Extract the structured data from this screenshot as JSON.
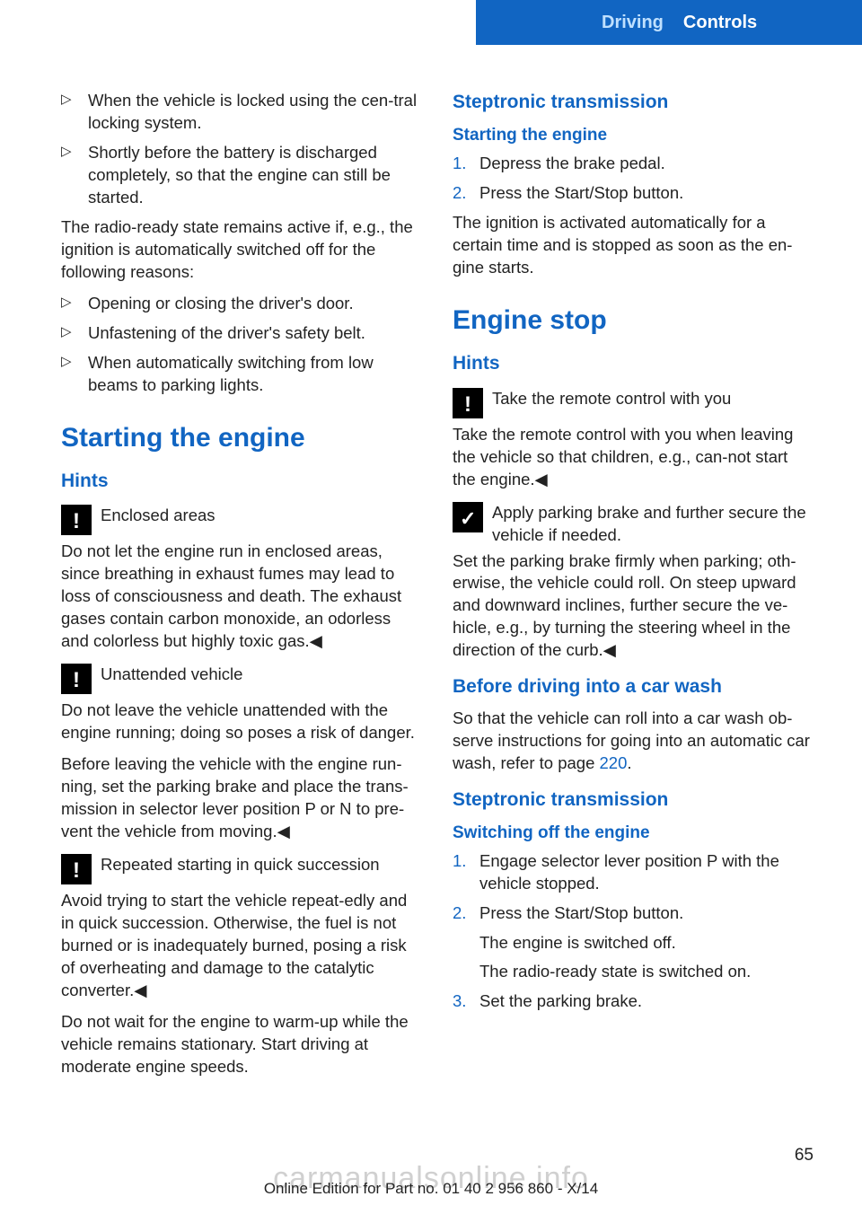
{
  "header": {
    "section": "Driving",
    "chapter": "Controls"
  },
  "left": {
    "bullets1": [
      "When the vehicle is locked using the cen‐tral locking system.",
      "Shortly before the battery is discharged completely, so that the engine can still be started."
    ],
    "p1": "The radio-ready state remains active if, e.g., the ignition is automatically switched off for the following reasons:",
    "bullets2": [
      "Opening or closing the driver's door.",
      "Unfastening of the driver's safety belt.",
      "When automatically switching from low beams to parking lights."
    ],
    "h1": "Starting the engine",
    "h2_hints": "Hints",
    "warn1_title": "Enclosed areas",
    "warn1_body": "Do not let the engine run in enclosed areas, since breathing in exhaust fumes may lead to loss of consciousness and death. The exhaust gases contain carbon monoxide, an odorless and colorless but highly toxic gas.◀",
    "warn2_title": "Unattended vehicle",
    "warn2_body": "Do not leave the vehicle unattended with the engine running; doing so poses a risk of danger.",
    "warn2_body2": "Before leaving the vehicle with the engine run‐ning, set the parking brake and place the trans‐mission in selector lever position P or N to pre‐vent the vehicle from moving.◀",
    "warn3_title": "Repeated starting in quick succession",
    "warn3_body": "Avoid trying to start the vehicle repeat‐edly and in quick succession. Otherwise, the fuel is not burned or is inadequately burned, posing a risk of overheating and damage to the catalytic converter.◀",
    "p_last": "Do not wait for the engine to warm-up while the vehicle remains stationary. Start driving at moderate engine speeds."
  },
  "right": {
    "h2_step": "Steptronic transmission",
    "h3_start": "Starting the engine",
    "start_steps": [
      "Depress the brake pedal.",
      "Press the Start/Stop button."
    ],
    "p_ign": "The ignition is activated automatically for a certain time and is stopped as soon as the en‐gine starts.",
    "h1_stop": "Engine stop",
    "h2_hints": "Hints",
    "warn1_title": "Take the remote control with you",
    "warn1_body": "Take the remote control with you when leaving the vehicle so that children, e.g., can‐not start the engine.◀",
    "note_title": "Apply parking brake and further secure the vehicle if needed.",
    "p_park": "Set the parking brake firmly when parking; oth‐erwise, the vehicle could roll. On steep upward and downward inclines, further secure the ve‐hicle, e.g., by turning the steering wheel in the direction of the curb.◀",
    "h2_wash": "Before driving into a car wash",
    "p_wash_a": "So that the vehicle can roll into a car wash ob‐serve instructions for going into an automatic car wash, refer to page ",
    "p_wash_link": "220",
    "p_wash_b": ".",
    "h2_step2": "Steptronic transmission",
    "h3_off": "Switching off the engine",
    "off_steps": {
      "s1": "Engage selector lever position P with the vehicle stopped.",
      "s2": "Press the Start/Stop button.",
      "s2a": "The engine is switched off.",
      "s2b": "The radio-ready state is switched on.",
      "s3": "Set the parking brake."
    }
  },
  "footer": {
    "pagenum": "65",
    "watermark": "carmanualsonline.info",
    "edition": "Online Edition for Part no. 01 40 2 956 860 - X/14"
  }
}
